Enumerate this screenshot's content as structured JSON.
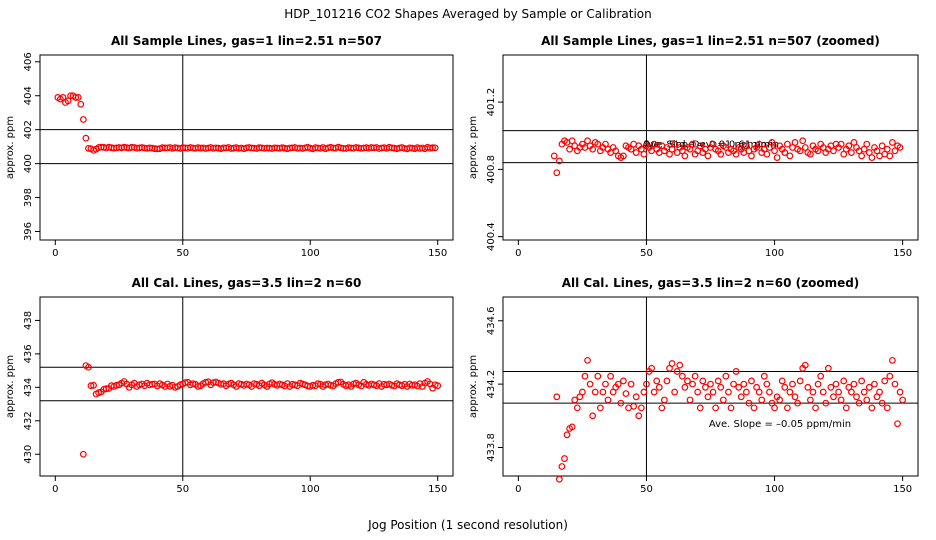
{
  "title": "HDP_101216  CO2 Shapes Averaged by Sample or Calibration",
  "xlabel": "Jog Position (1 second resolution)",
  "chart_data": [
    {
      "type": "scatter",
      "title": "All Sample Lines, gas=1 lin=2.51 n=507",
      "ylabel": "approx. ppm",
      "color": "#ff0000",
      "xlim": [
        -6,
        156
      ],
      "xticks": [
        0,
        50,
        100,
        150
      ],
      "ylim": [
        395.5,
        406.4
      ],
      "yticks": [
        396,
        398,
        400,
        402,
        404,
        406
      ],
      "hlines": [
        402,
        400
      ],
      "vlines": [
        50
      ],
      "annotations": [],
      "x": [
        1,
        2,
        3,
        4,
        5,
        6,
        7,
        8,
        9,
        10,
        11,
        12,
        13,
        14,
        15,
        16,
        17,
        18,
        19,
        20,
        21,
        22,
        23,
        24,
        25,
        26,
        27,
        28,
        29,
        30,
        31,
        32,
        33,
        34,
        35,
        36,
        37,
        38,
        39,
        40,
        41,
        42,
        43,
        44,
        45,
        46,
        47,
        48,
        49,
        50,
        51,
        52,
        53,
        54,
        55,
        56,
        57,
        58,
        59,
        60,
        61,
        62,
        63,
        64,
        65,
        66,
        67,
        68,
        69,
        70,
        71,
        72,
        73,
        74,
        75,
        76,
        77,
        78,
        79,
        80,
        81,
        82,
        83,
        84,
        85,
        86,
        87,
        88,
        89,
        90,
        91,
        92,
        93,
        94,
        95,
        96,
        97,
        98,
        99,
        100,
        101,
        102,
        103,
        104,
        105,
        106,
        107,
        108,
        109,
        110,
        111,
        112,
        113,
        114,
        115,
        116,
        117,
        118,
        119,
        120,
        121,
        122,
        123,
        124,
        125,
        126,
        127,
        128,
        129,
        130,
        131,
        132,
        133,
        134,
        135,
        136,
        137,
        138,
        139,
        140,
        141,
        142,
        143,
        144,
        145,
        146,
        147,
        148,
        149
      ],
      "values": [
        403.9,
        403.8,
        403.9,
        403.6,
        403.7,
        404.0,
        404.0,
        403.9,
        403.9,
        403.5,
        402.6,
        401.5,
        400.9,
        400.88,
        400.78,
        400.85,
        400.95,
        400.97,
        400.96,
        400.92,
        400.97,
        400.94,
        400.91,
        400.93,
        400.95,
        400.93,
        400.97,
        400.94,
        400.92,
        400.96,
        400.95,
        400.91,
        400.93,
        400.95,
        400.92,
        400.9,
        400.93,
        400.91,
        400.88,
        400.87,
        400.88,
        400.94,
        400.93,
        400.92,
        400.95,
        400.9,
        400.94,
        400.92,
        400.89,
        400.94,
        400.93,
        400.91,
        400.95,
        400.92,
        400.9,
        400.94,
        400.91,
        400.93,
        400.89,
        400.92,
        400.95,
        400.9,
        400.93,
        400.91,
        400.88,
        400.93,
        400.92,
        400.95,
        400.89,
        400.91,
        400.94,
        400.9,
        400.92,
        400.88,
        400.93,
        400.95,
        400.92,
        400.91,
        400.89,
        400.94,
        400.93,
        400.9,
        400.92,
        400.91,
        400.89,
        400.93,
        400.92,
        400.9,
        400.94,
        400.91,
        400.88,
        400.92,
        400.93,
        400.95,
        400.9,
        400.92,
        400.89,
        400.93,
        400.96,
        400.91,
        400.87,
        400.94,
        400.92,
        400.9,
        400.95,
        400.88,
        400.93,
        400.96,
        400.92,
        400.91,
        400.97,
        400.93,
        400.9,
        400.89,
        400.94,
        400.92,
        400.91,
        400.95,
        400.93,
        400.9,
        400.92,
        400.94,
        400.91,
        400.95,
        400.93,
        400.95,
        400.89,
        400.92,
        400.94,
        400.9,
        400.96,
        400.93,
        400.91,
        400.88,
        400.92,
        400.95,
        400.9,
        400.87,
        400.93,
        400.91,
        400.88,
        400.94,
        400.89,
        400.92,
        400.88,
        400.96,
        400.91,
        400.94,
        400.93
      ]
    },
    {
      "type": "scatter",
      "title": "All Sample Lines, gas=1 lin=2.51 n=507 (zoomed)",
      "ylabel": "approx. ppm",
      "color": "#ff0000",
      "xlim": [
        -6,
        156
      ],
      "xticks": [
        0,
        50,
        100,
        150
      ],
      "ylim": [
        400.38,
        401.48
      ],
      "yticks": [
        400.4,
        400.8,
        401.2
      ],
      "hlines": [
        401.03,
        400.84
      ],
      "vlines": [
        50
      ],
      "annotations": [
        "Ave. Slope =  0.01  ppm/min",
        "Ave. Std. Dev. =  0.61  ppm"
      ],
      "x": [
        14,
        15,
        16,
        17,
        18,
        19,
        20,
        21,
        22,
        23,
        24,
        25,
        26,
        27,
        28,
        29,
        30,
        31,
        32,
        33,
        34,
        35,
        36,
        37,
        38,
        39,
        40,
        41,
        42,
        43,
        44,
        45,
        46,
        47,
        48,
        49,
        50,
        51,
        52,
        53,
        54,
        55,
        56,
        57,
        58,
        59,
        60,
        61,
        62,
        63,
        64,
        65,
        66,
        67,
        68,
        69,
        70,
        71,
        72,
        73,
        74,
        75,
        76,
        77,
        78,
        79,
        80,
        81,
        82,
        83,
        84,
        85,
        86,
        87,
        88,
        89,
        90,
        91,
        92,
        93,
        94,
        95,
        96,
        97,
        98,
        99,
        100,
        101,
        102,
        103,
        104,
        105,
        106,
        107,
        108,
        109,
        110,
        111,
        112,
        113,
        114,
        115,
        116,
        117,
        118,
        119,
        120,
        121,
        122,
        123,
        124,
        125,
        126,
        127,
        128,
        129,
        130,
        131,
        132,
        133,
        134,
        135,
        136,
        137,
        138,
        139,
        140,
        141,
        142,
        143,
        144,
        145,
        146,
        147,
        148,
        149
      ],
      "values": [
        400.88,
        400.78,
        400.85,
        400.95,
        400.97,
        400.96,
        400.92,
        400.97,
        400.94,
        400.91,
        400.93,
        400.95,
        400.93,
        400.97,
        400.94,
        400.92,
        400.96,
        400.95,
        400.91,
        400.93,
        400.95,
        400.92,
        400.9,
        400.93,
        400.91,
        400.88,
        400.87,
        400.88,
        400.94,
        400.93,
        400.92,
        400.95,
        400.9,
        400.94,
        400.92,
        400.89,
        400.94,
        400.93,
        400.91,
        400.95,
        400.92,
        400.9,
        400.94,
        400.91,
        400.93,
        400.89,
        400.92,
        400.95,
        400.9,
        400.93,
        400.91,
        400.88,
        400.93,
        400.92,
        400.95,
        400.89,
        400.91,
        400.94,
        400.9,
        400.92,
        400.88,
        400.93,
        400.95,
        400.92,
        400.91,
        400.89,
        400.94,
        400.93,
        400.9,
        400.92,
        400.91,
        400.89,
        400.93,
        400.92,
        400.9,
        400.94,
        400.91,
        400.88,
        400.92,
        400.93,
        400.95,
        400.9,
        400.92,
        400.89,
        400.93,
        400.96,
        400.91,
        400.87,
        400.94,
        400.92,
        400.9,
        400.95,
        400.88,
        400.93,
        400.96,
        400.92,
        400.91,
        400.97,
        400.93,
        400.9,
        400.89,
        400.94,
        400.92,
        400.91,
        400.95,
        400.93,
        400.9,
        400.92,
        400.94,
        400.91,
        400.95,
        400.93,
        400.95,
        400.89,
        400.92,
        400.94,
        400.9,
        400.96,
        400.93,
        400.91,
        400.88,
        400.92,
        400.95,
        400.9,
        400.87,
        400.93,
        400.91,
        400.88,
        400.94,
        400.89,
        400.92,
        400.88,
        400.96,
        400.91,
        400.94,
        400.93
      ]
    },
    {
      "type": "scatter",
      "title": "All Cal. Lines, gas=3.5 lin=2 n=60",
      "ylabel": "approx. ppm",
      "color": "#ff0000",
      "xlim": [
        -6,
        156
      ],
      "xticks": [
        0,
        50,
        100,
        150
      ],
      "ylim": [
        428.7,
        439.4
      ],
      "yticks": [
        430,
        432,
        434,
        436,
        438
      ],
      "hlines": [
        435.2,
        433.2
      ],
      "vlines": [
        50
      ],
      "annotations": [],
      "x": [
        11,
        12,
        13,
        14,
        15,
        16,
        17,
        18,
        19,
        20,
        21,
        22,
        23,
        24,
        25,
        26,
        27,
        28,
        29,
        30,
        31,
        32,
        33,
        34,
        35,
        36,
        37,
        38,
        39,
        40,
        41,
        42,
        43,
        44,
        45,
        46,
        47,
        48,
        49,
        50,
        51,
        52,
        53,
        54,
        55,
        56,
        57,
        58,
        59,
        60,
        61,
        62,
        63,
        64,
        65,
        66,
        67,
        68,
        69,
        70,
        71,
        72,
        73,
        74,
        75,
        76,
        77,
        78,
        79,
        80,
        81,
        82,
        83,
        84,
        85,
        86,
        87,
        88,
        89,
        90,
        91,
        92,
        93,
        94,
        95,
        96,
        97,
        98,
        99,
        100,
        101,
        102,
        103,
        104,
        105,
        106,
        107,
        108,
        109,
        110,
        111,
        112,
        113,
        114,
        115,
        116,
        117,
        118,
        119,
        120,
        121,
        122,
        123,
        124,
        125,
        126,
        127,
        128,
        129,
        130,
        131,
        132,
        133,
        134,
        135,
        136,
        137,
        138,
        139,
        140,
        141,
        142,
        143,
        144,
        145,
        146,
        147,
        148,
        149,
        150
      ],
      "values": [
        430.0,
        435.3,
        435.2,
        434.1,
        434.12,
        433.6,
        433.68,
        433.73,
        433.88,
        433.92,
        433.93,
        434.1,
        434.05,
        434.12,
        434.15,
        434.25,
        434.35,
        434.2,
        434.0,
        434.15,
        434.25,
        434.05,
        434.15,
        434.2,
        434.1,
        434.25,
        434.15,
        434.18,
        434.2,
        434.08,
        434.22,
        434.14,
        434.05,
        434.2,
        434.06,
        434.12,
        434.0,
        434.05,
        434.15,
        434.2,
        434.28,
        434.3,
        434.15,
        434.22,
        434.18,
        434.05,
        434.1,
        434.22,
        434.3,
        434.33,
        434.15,
        434.28,
        434.32,
        434.25,
        434.18,
        434.22,
        434.1,
        434.2,
        434.25,
        434.15,
        434.05,
        434.22,
        434.18,
        434.12,
        434.2,
        434.15,
        434.05,
        434.22,
        434.18,
        434.1,
        434.25,
        434.15,
        434.05,
        434.2,
        434.28,
        434.18,
        434.12,
        434.2,
        434.15,
        434.08,
        434.22,
        434.05,
        434.18,
        434.15,
        434.1,
        434.25,
        434.2,
        434.15,
        434.08,
        434.05,
        434.12,
        434.1,
        434.22,
        434.18,
        434.05,
        434.15,
        434.2,
        434.12,
        434.08,
        434.22,
        434.3,
        434.32,
        434.18,
        434.1,
        434.15,
        434.05,
        434.2,
        434.25,
        434.15,
        434.08,
        434.3,
        434.18,
        434.12,
        434.2,
        434.15,
        434.1,
        434.22,
        434.05,
        434.18,
        434.15,
        434.2,
        434.12,
        434.08,
        434.22,
        434.15,
        434.1,
        434.18,
        434.05,
        434.2,
        434.12,
        434.15,
        434.08,
        434.22,
        434.05,
        434.25,
        434.35,
        434.2,
        433.95,
        434.15,
        434.1
      ]
    },
    {
      "type": "scatter",
      "title": "All Cal. Lines, gas=3.5 lin=2 n=60 (zoomed)",
      "ylabel": "approx. ppm",
      "color": "#ff0000",
      "xlim": [
        -6,
        156
      ],
      "xticks": [
        0,
        50,
        100,
        150
      ],
      "ylim": [
        433.62,
        434.75
      ],
      "yticks": [
        433.8,
        434.2,
        434.6
      ],
      "hlines": [
        434.28,
        434.08
      ],
      "vlines": [
        50
      ],
      "annotations": [
        "Ave. Slope =  –0.05  ppm/min"
      ],
      "x": [
        15,
        16,
        17,
        18,
        19,
        20,
        21,
        22,
        23,
        24,
        25,
        26,
        27,
        28,
        29,
        30,
        31,
        32,
        33,
        34,
        35,
        36,
        37,
        38,
        39,
        40,
        41,
        42,
        43,
        44,
        45,
        46,
        47,
        48,
        49,
        50,
        51,
        52,
        53,
        54,
        55,
        56,
        57,
        58,
        59,
        60,
        61,
        62,
        63,
        64,
        65,
        66,
        67,
        68,
        69,
        70,
        71,
        72,
        73,
        74,
        75,
        76,
        77,
        78,
        79,
        80,
        81,
        82,
        83,
        84,
        85,
        86,
        87,
        88,
        89,
        90,
        91,
        92,
        93,
        94,
        95,
        96,
        97,
        98,
        99,
        100,
        101,
        102,
        103,
        104,
        105,
        106,
        107,
        108,
        109,
        110,
        111,
        112,
        113,
        114,
        115,
        116,
        117,
        118,
        119,
        120,
        121,
        122,
        123,
        124,
        125,
        126,
        127,
        128,
        129,
        130,
        131,
        132,
        133,
        134,
        135,
        136,
        137,
        138,
        139,
        140,
        141,
        142,
        143,
        144,
        145,
        146,
        147,
        148,
        149,
        150
      ],
      "values": [
        434.12,
        433.6,
        433.68,
        433.73,
        433.88,
        433.92,
        433.93,
        434.1,
        434.05,
        434.12,
        434.15,
        434.25,
        434.35,
        434.2,
        434.0,
        434.15,
        434.25,
        434.05,
        434.15,
        434.2,
        434.1,
        434.25,
        434.15,
        434.18,
        434.2,
        434.08,
        434.22,
        434.14,
        434.05,
        434.2,
        434.06,
        434.12,
        434.0,
        434.05,
        434.15,
        434.2,
        434.28,
        434.3,
        434.15,
        434.22,
        434.18,
        434.05,
        434.1,
        434.22,
        434.3,
        434.33,
        434.15,
        434.28,
        434.32,
        434.25,
        434.18,
        434.22,
        434.1,
        434.2,
        434.25,
        434.15,
        434.05,
        434.22,
        434.18,
        434.12,
        434.2,
        434.15,
        434.05,
        434.22,
        434.18,
        434.1,
        434.25,
        434.15,
        434.05,
        434.2,
        434.28,
        434.18,
        434.12,
        434.2,
        434.15,
        434.08,
        434.22,
        434.05,
        434.18,
        434.15,
        434.1,
        434.25,
        434.2,
        434.15,
        434.08,
        434.05,
        434.12,
        434.1,
        434.22,
        434.18,
        434.05,
        434.15,
        434.2,
        434.12,
        434.08,
        434.22,
        434.3,
        434.32,
        434.18,
        434.1,
        434.15,
        434.05,
        434.2,
        434.25,
        434.15,
        434.08,
        434.3,
        434.18,
        434.12,
        434.2,
        434.15,
        434.1,
        434.22,
        434.05,
        434.18,
        434.15,
        434.2,
        434.12,
        434.08,
        434.22,
        434.15,
        434.1,
        434.18,
        434.05,
        434.2,
        434.12,
        434.15,
        434.08,
        434.22,
        434.05,
        434.25,
        434.35,
        434.2,
        433.95,
        434.15,
        434.1
      ]
    }
  ]
}
